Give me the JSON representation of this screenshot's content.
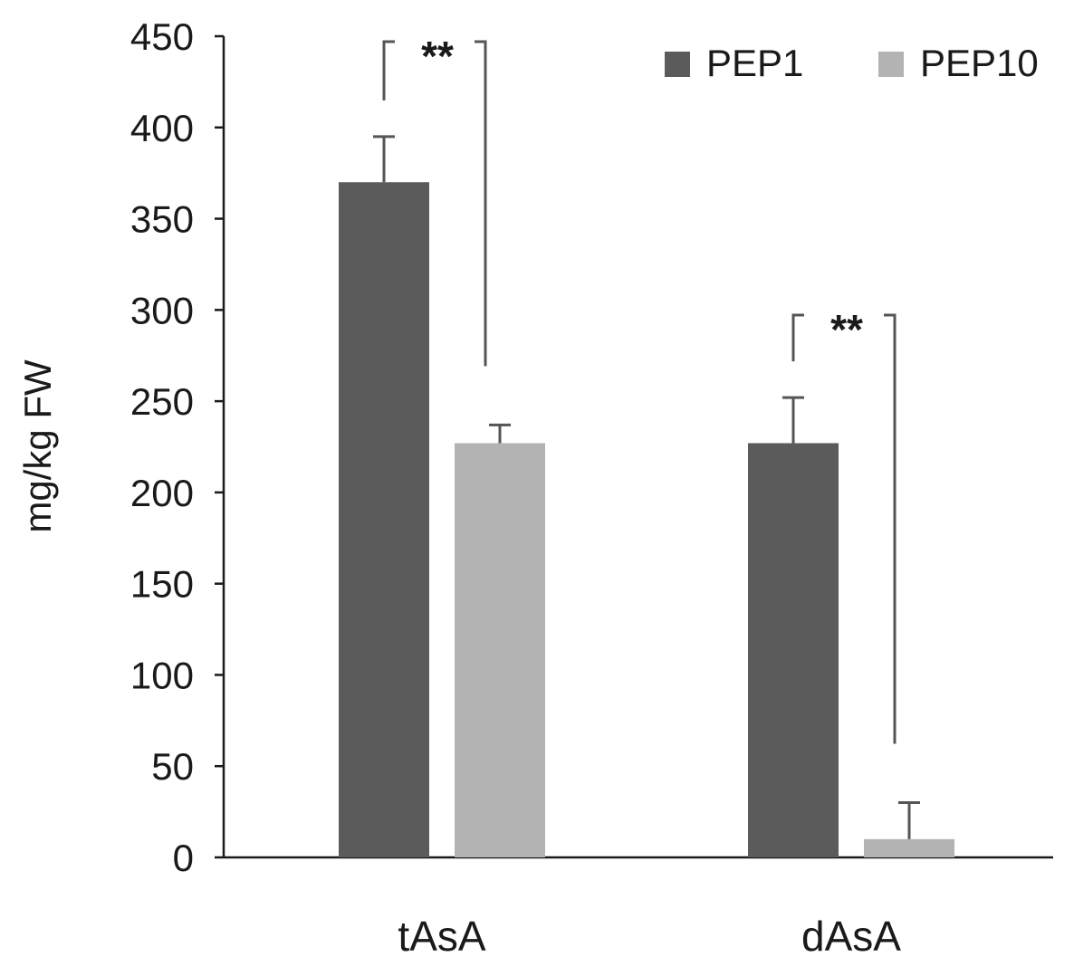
{
  "chart_data": {
    "type": "bar",
    "title": "",
    "xlabel": "",
    "ylabel": "mg/kg FW",
    "ylim": [
      0,
      450
    ],
    "yticks": [
      0,
      50,
      100,
      150,
      200,
      250,
      300,
      350,
      400,
      450
    ],
    "grid": false,
    "legend_position": "top-right",
    "categories": [
      "tAsA",
      "dAsA"
    ],
    "series": [
      {
        "name": "PEP1",
        "color": "#5b5b5b",
        "values": [
          370,
          227
        ],
        "errors": [
          25,
          25
        ]
      },
      {
        "name": "PEP10",
        "color": "#b3b3b3",
        "values": [
          227,
          10
        ],
        "errors": [
          10,
          20
        ]
      }
    ],
    "annotations": [
      {
        "category": "tAsA",
        "text": "**"
      },
      {
        "category": "dAsA",
        "text": "**"
      }
    ]
  }
}
